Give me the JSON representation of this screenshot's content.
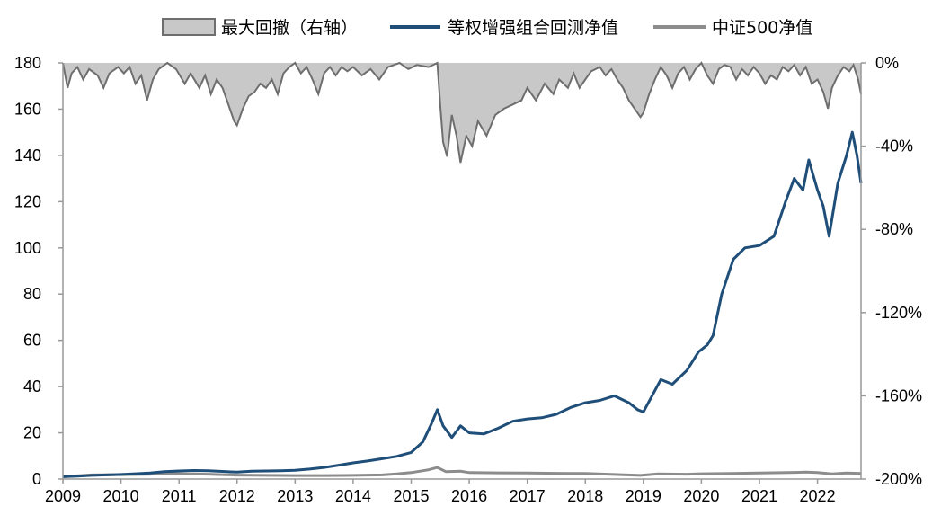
{
  "chart_data": {
    "type": "line",
    "legend": {
      "placement": "top-center",
      "entries": [
        {
          "key": "drawdown",
          "label": "最大回撤（右轴）",
          "color": "#c8c8c8",
          "edge": "#6e6e6e"
        },
        {
          "key": "strategy",
          "label": "等权增强组合回测净值",
          "color": "#1f4e79"
        },
        {
          "key": "csi500",
          "label": "中证500净值",
          "color": "#8c8c8c"
        }
      ]
    },
    "x_axis": {
      "ticks": [
        "2009",
        "2010",
        "2011",
        "2012",
        "2013",
        "2014",
        "2015",
        "2016",
        "2017",
        "2018",
        "2019",
        "2020",
        "2021",
        "2022"
      ],
      "range": [
        2009.0,
        2022.75
      ]
    },
    "y_left": {
      "ticks": [
        "0",
        "20",
        "40",
        "60",
        "80",
        "100",
        "120",
        "140",
        "160",
        "180"
      ],
      "range": [
        0,
        180
      ]
    },
    "y_right": {
      "ticks": [
        "0%",
        "-40%",
        "-80%",
        "-120%",
        "-160%",
        "-200%"
      ],
      "range": [
        -200,
        0
      ],
      "unit": "%"
    },
    "series": [
      {
        "name": "等权增强组合回测净值",
        "axis": "left",
        "points": [
          [
            2009.0,
            1.0
          ],
          [
            2009.25,
            1.3
          ],
          [
            2009.5,
            1.6
          ],
          [
            2009.75,
            1.8
          ],
          [
            2010.0,
            2.0
          ],
          [
            2010.25,
            2.3
          ],
          [
            2010.5,
            2.6
          ],
          [
            2010.75,
            3.2
          ],
          [
            2011.0,
            3.5
          ],
          [
            2011.25,
            3.7
          ],
          [
            2011.5,
            3.6
          ],
          [
            2011.75,
            3.3
          ],
          [
            2012.0,
            3.0
          ],
          [
            2012.25,
            3.4
          ],
          [
            2012.5,
            3.5
          ],
          [
            2012.75,
            3.6
          ],
          [
            2013.0,
            3.8
          ],
          [
            2013.25,
            4.3
          ],
          [
            2013.5,
            5.0
          ],
          [
            2013.75,
            6.0
          ],
          [
            2014.0,
            7.0
          ],
          [
            2014.25,
            7.8
          ],
          [
            2014.5,
            8.8
          ],
          [
            2014.75,
            9.8
          ],
          [
            2015.0,
            11.5
          ],
          [
            2015.2,
            16.0
          ],
          [
            2015.35,
            24.0
          ],
          [
            2015.45,
            30.0
          ],
          [
            2015.55,
            23.0
          ],
          [
            2015.7,
            18.0
          ],
          [
            2015.85,
            23.0
          ],
          [
            2016.0,
            20.0
          ],
          [
            2016.25,
            19.5
          ],
          [
            2016.5,
            22.0
          ],
          [
            2016.75,
            25.0
          ],
          [
            2017.0,
            26.0
          ],
          [
            2017.25,
            26.5
          ],
          [
            2017.5,
            28.0
          ],
          [
            2017.75,
            31.0
          ],
          [
            2018.0,
            33.0
          ],
          [
            2018.25,
            34.0
          ],
          [
            2018.5,
            36.0
          ],
          [
            2018.75,
            33.0
          ],
          [
            2018.9,
            30.0
          ],
          [
            2019.0,
            29.0
          ],
          [
            2019.15,
            36.0
          ],
          [
            2019.3,
            43.0
          ],
          [
            2019.5,
            41.0
          ],
          [
            2019.75,
            47.0
          ],
          [
            2019.95,
            55.0
          ],
          [
            2020.1,
            58.0
          ],
          [
            2020.2,
            62.0
          ],
          [
            2020.35,
            80.0
          ],
          [
            2020.55,
            95.0
          ],
          [
            2020.75,
            100.0
          ],
          [
            2021.0,
            101.0
          ],
          [
            2021.25,
            105.0
          ],
          [
            2021.45,
            120.0
          ],
          [
            2021.6,
            130.0
          ],
          [
            2021.75,
            125.0
          ],
          [
            2021.85,
            138.0
          ],
          [
            2022.0,
            125.0
          ],
          [
            2022.1,
            118.0
          ],
          [
            2022.2,
            105.0
          ],
          [
            2022.35,
            128.0
          ],
          [
            2022.5,
            140.0
          ],
          [
            2022.6,
            150.0
          ],
          [
            2022.68,
            140.0
          ],
          [
            2022.75,
            128.0
          ]
        ]
      },
      {
        "name": "中证500净值",
        "axis": "left",
        "points": [
          [
            2009.0,
            1.0
          ],
          [
            2009.5,
            1.8
          ],
          [
            2010.0,
            1.9
          ],
          [
            2010.5,
            2.1
          ],
          [
            2010.75,
            2.5
          ],
          [
            2011.0,
            2.3
          ],
          [
            2011.5,
            2.1
          ],
          [
            2012.0,
            1.7
          ],
          [
            2012.5,
            1.6
          ],
          [
            2013.0,
            1.5
          ],
          [
            2013.5,
            1.5
          ],
          [
            2014.0,
            1.6
          ],
          [
            2014.5,
            1.8
          ],
          [
            2014.75,
            2.2
          ],
          [
            2015.0,
            2.8
          ],
          [
            2015.3,
            4.0
          ],
          [
            2015.45,
            5.0
          ],
          [
            2015.6,
            3.2
          ],
          [
            2015.85,
            3.4
          ],
          [
            2016.0,
            2.8
          ],
          [
            2016.5,
            2.7
          ],
          [
            2017.0,
            2.6
          ],
          [
            2017.5,
            2.5
          ],
          [
            2018.0,
            2.4
          ],
          [
            2018.5,
            2.0
          ],
          [
            2018.95,
            1.6
          ],
          [
            2019.25,
            2.2
          ],
          [
            2019.75,
            2.1
          ],
          [
            2020.0,
            2.3
          ],
          [
            2020.5,
            2.4
          ],
          [
            2021.0,
            2.6
          ],
          [
            2021.5,
            2.8
          ],
          [
            2021.8,
            3.0
          ],
          [
            2022.0,
            2.8
          ],
          [
            2022.25,
            2.2
          ],
          [
            2022.5,
            2.6
          ],
          [
            2022.75,
            2.4
          ]
        ]
      },
      {
        "name": "最大回撤（右轴）",
        "axis": "right",
        "points": [
          [
            2009.0,
            0
          ],
          [
            2009.08,
            -12
          ],
          [
            2009.15,
            -5
          ],
          [
            2009.25,
            -2
          ],
          [
            2009.35,
            -8
          ],
          [
            2009.45,
            -3
          ],
          [
            2009.6,
            -6
          ],
          [
            2009.7,
            -12
          ],
          [
            2009.8,
            -5
          ],
          [
            2009.95,
            -2
          ],
          [
            2010.05,
            -5
          ],
          [
            2010.15,
            -2
          ],
          [
            2010.25,
            -10
          ],
          [
            2010.35,
            -6
          ],
          [
            2010.45,
            -18
          ],
          [
            2010.55,
            -8
          ],
          [
            2010.65,
            -3
          ],
          [
            2010.8,
            0
          ],
          [
            2010.95,
            -3
          ],
          [
            2011.1,
            -10
          ],
          [
            2011.2,
            -5
          ],
          [
            2011.35,
            -12
          ],
          [
            2011.45,
            -6
          ],
          [
            2011.55,
            -15
          ],
          [
            2011.65,
            -8
          ],
          [
            2011.75,
            -12
          ],
          [
            2011.85,
            -20
          ],
          [
            2011.95,
            -28
          ],
          [
            2012.0,
            -30
          ],
          [
            2012.1,
            -22
          ],
          [
            2012.2,
            -16
          ],
          [
            2012.3,
            -14
          ],
          [
            2012.4,
            -10
          ],
          [
            2012.5,
            -12
          ],
          [
            2012.6,
            -8
          ],
          [
            2012.7,
            -15
          ],
          [
            2012.8,
            -5
          ],
          [
            2012.9,
            -2
          ],
          [
            2013.0,
            0
          ],
          [
            2013.1,
            -5
          ],
          [
            2013.2,
            -2
          ],
          [
            2013.3,
            -8
          ],
          [
            2013.4,
            -15
          ],
          [
            2013.5,
            -5
          ],
          [
            2013.6,
            -2
          ],
          [
            2013.7,
            -6
          ],
          [
            2013.8,
            -2
          ],
          [
            2013.9,
            -4
          ],
          [
            2014.0,
            -2
          ],
          [
            2014.15,
            -6
          ],
          [
            2014.3,
            -3
          ],
          [
            2014.45,
            -8
          ],
          [
            2014.6,
            -2
          ],
          [
            2014.8,
            0
          ],
          [
            2014.95,
            -3
          ],
          [
            2015.1,
            -1
          ],
          [
            2015.3,
            -2
          ],
          [
            2015.45,
            0
          ],
          [
            2015.5,
            -20
          ],
          [
            2015.55,
            -38
          ],
          [
            2015.62,
            -45
          ],
          [
            2015.7,
            -25
          ],
          [
            2015.78,
            -35
          ],
          [
            2015.85,
            -48
          ],
          [
            2015.95,
            -35
          ],
          [
            2016.05,
            -40
          ],
          [
            2016.15,
            -28
          ],
          [
            2016.3,
            -35
          ],
          [
            2016.45,
            -25
          ],
          [
            2016.6,
            -22
          ],
          [
            2016.75,
            -20
          ],
          [
            2016.9,
            -18
          ],
          [
            2017.0,
            -12
          ],
          [
            2017.15,
            -18
          ],
          [
            2017.3,
            -10
          ],
          [
            2017.45,
            -15
          ],
          [
            2017.55,
            -8
          ],
          [
            2017.7,
            -12
          ],
          [
            2017.8,
            -5
          ],
          [
            2017.9,
            -12
          ],
          [
            2018.0,
            -8
          ],
          [
            2018.1,
            -4
          ],
          [
            2018.25,
            -2
          ],
          [
            2018.35,
            -6
          ],
          [
            2018.45,
            -3
          ],
          [
            2018.55,
            -8
          ],
          [
            2018.65,
            -12
          ],
          [
            2018.75,
            -18
          ],
          [
            2018.85,
            -22
          ],
          [
            2018.95,
            -26
          ],
          [
            2019.0,
            -24
          ],
          [
            2019.1,
            -15
          ],
          [
            2019.2,
            -8
          ],
          [
            2019.3,
            -2
          ],
          [
            2019.4,
            -6
          ],
          [
            2019.5,
            -12
          ],
          [
            2019.6,
            -5
          ],
          [
            2019.7,
            -2
          ],
          [
            2019.8,
            -8
          ],
          [
            2019.9,
            -3
          ],
          [
            2020.0,
            0
          ],
          [
            2020.1,
            -6
          ],
          [
            2020.2,
            -10
          ],
          [
            2020.3,
            -3
          ],
          [
            2020.4,
            -1
          ],
          [
            2020.5,
            -2
          ],
          [
            2020.6,
            -8
          ],
          [
            2020.7,
            -3
          ],
          [
            2020.8,
            -6
          ],
          [
            2020.9,
            -2
          ],
          [
            2021.0,
            -5
          ],
          [
            2021.1,
            -10
          ],
          [
            2021.2,
            -6
          ],
          [
            2021.3,
            -8
          ],
          [
            2021.4,
            -2
          ],
          [
            2021.5,
            -4
          ],
          [
            2021.6,
            -1
          ],
          [
            2021.7,
            -6
          ],
          [
            2021.8,
            -2
          ],
          [
            2021.9,
            -10
          ],
          [
            2022.0,
            -8
          ],
          [
            2022.1,
            -14
          ],
          [
            2022.18,
            -22
          ],
          [
            2022.25,
            -12
          ],
          [
            2022.35,
            -6
          ],
          [
            2022.45,
            -2
          ],
          [
            2022.55,
            -4
          ],
          [
            2022.62,
            -1
          ],
          [
            2022.7,
            -8
          ],
          [
            2022.75,
            -15
          ]
        ]
      }
    ]
  }
}
